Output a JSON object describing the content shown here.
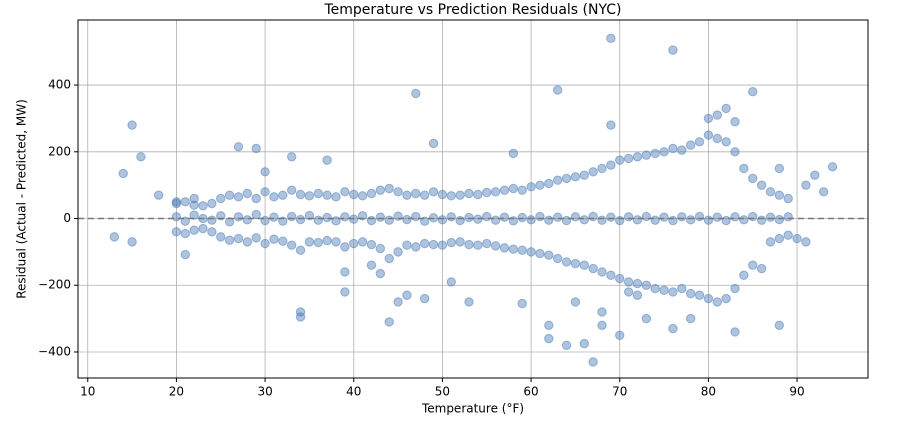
{
  "chart_data": {
    "type": "scatter",
    "title": "Temperature vs Prediction Residuals (NYC)",
    "x_label": "Temperature (°F)",
    "y_label": "Residual (Actual - Predicted, MW)",
    "color": "#4a7ab5",
    "grid": true,
    "reference_line": 0,
    "xlim": [
      8.9,
      98.0
    ],
    "ylim": [
      -478,
      595
    ],
    "xticks": [
      10,
      20,
      30,
      40,
      50,
      60,
      70,
      80,
      90
    ],
    "yticks": [
      {
        "value": -400,
        "label": "−400"
      },
      {
        "value": -200,
        "label": "−200"
      },
      0,
      200,
      400
    ],
    "x": [
      20,
      20,
      20,
      21,
      21,
      21,
      22,
      22,
      22,
      23,
      23,
      23,
      24,
      24,
      24,
      25,
      25,
      25,
      26,
      26,
      26,
      27,
      27,
      27,
      28,
      28,
      28,
      29,
      29,
      29,
      30,
      30,
      30,
      31,
      31,
      31,
      32,
      32,
      32,
      33,
      33,
      33,
      34,
      34,
      34,
      35,
      35,
      35,
      36,
      36,
      36,
      37,
      37,
      37,
      38,
      38,
      38,
      39,
      39,
      39,
      40,
      40,
      40,
      41,
      41,
      41,
      42,
      42,
      42,
      43,
      43,
      43,
      44,
      44,
      44,
      45,
      45,
      45,
      46,
      46,
      46,
      47,
      47,
      47,
      48,
      48,
      48,
      49,
      49,
      49,
      50,
      50,
      50,
      51,
      51,
      51,
      52,
      52,
      52,
      53,
      53,
      53,
      54,
      54,
      54,
      55,
      55,
      55,
      56,
      56,
      56,
      57,
      57,
      57,
      58,
      58,
      58,
      59,
      59,
      59,
      60,
      60,
      60,
      61,
      61,
      61,
      62,
      62,
      62,
      63,
      63,
      63,
      64,
      64,
      64,
      65,
      65,
      65,
      66,
      66,
      66,
      67,
      67,
      67,
      68,
      68,
      68,
      69,
      69,
      69,
      70,
      70,
      70,
      71,
      71,
      71,
      72,
      72,
      72,
      73,
      73,
      73,
      74,
      74,
      74,
      75,
      75,
      75,
      76,
      76,
      76,
      77,
      77,
      77,
      78,
      78,
      78,
      79,
      79,
      79,
      80,
      80,
      80,
      81,
      81,
      81,
      82,
      82,
      82,
      83,
      83,
      83,
      84,
      84,
      84,
      85,
      85,
      85,
      86,
      86,
      86,
      87,
      87,
      87,
      88,
      88,
      88,
      89,
      89,
      89,
      15,
      16,
      14,
      13,
      15,
      21,
      18,
      20,
      22,
      27,
      29,
      30,
      33,
      37,
      34,
      34,
      39,
      39,
      42,
      43,
      44,
      45,
      46,
      48,
      47,
      49,
      51,
      53,
      58,
      59,
      62,
      62,
      63,
      64,
      65,
      66,
      67,
      68,
      68,
      69,
      69,
      70,
      71,
      72,
      73,
      76,
      76,
      78,
      80,
      81,
      82,
      83,
      83,
      85,
      88,
      88,
      90,
      91,
      92,
      93,
      94,
      91
    ],
    "values": [
      45,
      5,
      -40,
      50,
      -8,
      -45,
      40,
      10,
      -35,
      38,
      0,
      -30,
      45,
      -5,
      -40,
      60,
      8,
      -55,
      70,
      -10,
      -65,
      65,
      5,
      -60,
      75,
      -4,
      -70,
      60,
      12,
      -58,
      80,
      -6,
      -75,
      65,
      4,
      -62,
      70,
      -8,
      -68,
      85,
      6,
      -80,
      72,
      -3,
      -95,
      68,
      9,
      -70,
      75,
      -5,
      -72,
      70,
      3,
      -66,
      65,
      -7,
      -70,
      80,
      5,
      -85,
      72,
      -2,
      -75,
      68,
      8,
      -70,
      75,
      -6,
      -78,
      85,
      4,
      -90,
      90,
      -5,
      -120,
      80,
      7,
      -100,
      70,
      -3,
      -80,
      75,
      6,
      -85,
      70,
      -8,
      -75,
      80,
      2,
      -78,
      72,
      -4,
      -80,
      68,
      5,
      -72,
      70,
      -6,
      -70,
      75,
      3,
      -78,
      72,
      -2,
      -80,
      78,
      6,
      -75,
      80,
      -5,
      -82,
      85,
      4,
      -88,
      90,
      -7,
      -92,
      85,
      3,
      -95,
      95,
      -4,
      -100,
      100,
      6,
      -105,
      105,
      -5,
      -110,
      115,
      4,
      -120,
      120,
      -6,
      -130,
      125,
      5,
      -135,
      130,
      -4,
      -140,
      140,
      6,
      -150,
      150,
      -5,
      -160,
      160,
      4,
      -170,
      175,
      -6,
      -180,
      180,
      5,
      -190,
      185,
      -4,
      -195,
      190,
      6,
      -200,
      195,
      -5,
      -210,
      200,
      4,
      -215,
      210,
      -6,
      -220,
      205,
      5,
      -210,
      220,
      -4,
      -225,
      230,
      6,
      -230,
      250,
      -5,
      -240,
      240,
      4,
      -250,
      230,
      -6,
      -240,
      200,
      5,
      -210,
      150,
      -4,
      -170,
      120,
      6,
      -140,
      100,
      -5,
      -150,
      80,
      4,
      -70,
      70,
      -3,
      -60,
      60,
      5,
      -50,
      280,
      185,
      135,
      -55,
      -70,
      -108,
      70,
      50,
      60,
      215,
      210,
      140,
      185,
      175,
      -280,
      -295,
      -160,
      -220,
      -140,
      -165,
      -310,
      -250,
      -230,
      -240,
      375,
      225,
      -190,
      -250,
      195,
      -255,
      -320,
      -360,
      385,
      -380,
      -250,
      -375,
      -430,
      -320,
      -280,
      540,
      280,
      -350,
      -220,
      -230,
      -300,
      505,
      -330,
      -300,
      300,
      310,
      330,
      -340,
      290,
      380,
      -320,
      150,
      -60,
      -70,
      130,
      80,
      155,
      100
    ]
  }
}
